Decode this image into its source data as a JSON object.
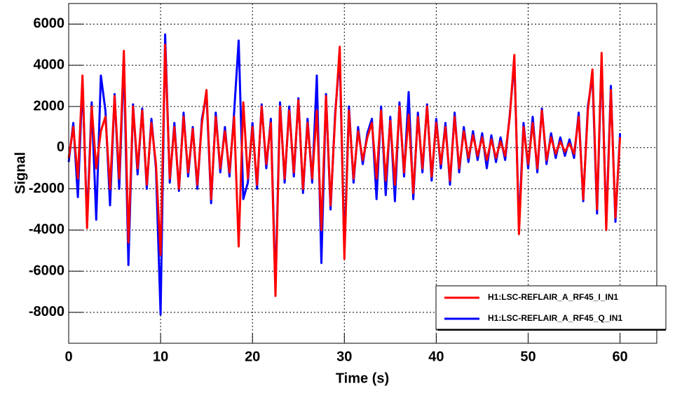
{
  "chart_data": {
    "type": "line",
    "x_label": "Time (s)",
    "y_label": "Signal",
    "x": [
      0,
      0.5,
      1,
      1.5,
      2,
      2.5,
      3,
      3.5,
      4,
      4.5,
      5,
      5.5,
      6,
      6.5,
      7,
      7.5,
      8,
      8.5,
      9,
      9.5,
      10,
      10.5,
      11,
      11.5,
      12,
      12.5,
      13,
      13.5,
      14,
      14.5,
      15,
      15.5,
      16,
      16.5,
      17,
      17.5,
      18,
      18.5,
      19,
      19.5,
      20,
      20.5,
      21,
      21.5,
      22,
      22.5,
      23,
      23.5,
      24,
      24.5,
      25,
      25.5,
      26,
      26.5,
      27,
      27.5,
      28,
      28.5,
      29,
      29.5,
      30,
      30.5,
      31,
      31.5,
      32,
      32.5,
      33,
      33.5,
      34,
      34.5,
      35,
      35.5,
      36,
      36.5,
      37,
      37.5,
      38,
      38.5,
      39,
      39.5,
      40,
      40.5,
      41,
      41.5,
      42,
      42.5,
      43,
      43.5,
      44,
      44.5,
      45,
      45.5,
      46,
      46.5,
      47,
      47.5,
      48,
      48.5,
      49,
      49.5,
      50,
      50.5,
      51,
      51.5,
      52,
      52.5,
      53,
      53.5,
      54,
      54.5,
      55,
      55.5,
      56,
      56.5,
      57,
      57.5,
      58,
      58.5,
      59,
      59.5,
      60
    ],
    "series": [
      {
        "name": "H1:LSC-REFLAIR_A_RF45_I_IN1",
        "color": "#ff0000",
        "values": [
          -500,
          1000,
          -1500,
          3500,
          -3900,
          2000,
          -1000,
          800,
          1500,
          -2000,
          2500,
          -1500,
          4700,
          -4600,
          2000,
          -1000,
          1800,
          -1800,
          1200,
          -800,
          -5200,
          5000,
          -1500,
          1000,
          -2000,
          1500,
          -1200,
          900,
          -1800,
          1200,
          2800,
          -2500,
          1500,
          -1000,
          800,
          -1200,
          1500,
          -4800,
          2200,
          -1500,
          1000,
          -1800,
          2000,
          -800,
          1200,
          -7200,
          2000,
          -1500,
          1800,
          -1200,
          2300,
          -2000,
          1200,
          -1500,
          1800,
          -4000,
          2500,
          -2800,
          1500,
          4900,
          -5400,
          1800,
          -1500,
          800,
          -600,
          500,
          1200,
          -1500,
          1800,
          -1600,
          1300,
          -1800,
          2000,
          -1200,
          1600,
          -2200,
          1500,
          -1000,
          2000,
          -1400,
          1200,
          -800,
          1000,
          -1600,
          1500,
          -1000,
          800,
          -500,
          600,
          -400,
          500,
          -600,
          400,
          -500,
          300,
          -400,
          1500,
          4500,
          -4200,
          1000,
          -800,
          1200,
          -1000,
          1800,
          -600,
          500,
          -300,
          300,
          -200,
          200,
          -300,
          1500,
          -2500,
          1800,
          3800,
          -3000,
          4600,
          -4000,
          2800,
          -3400,
          500
        ]
      },
      {
        "name": "H1:LSC-REFLAIR_A_RF45_Q_IN1",
        "color": "#0000ff",
        "values": [
          -700,
          1200,
          -2400,
          3200,
          -3600,
          2200,
          -3500,
          3500,
          1800,
          -2800,
          2600,
          -2000,
          4300,
          -5700,
          2100,
          -1300,
          1900,
          -2000,
          1400,
          -1000,
          -8100,
          5500,
          -1700,
          1200,
          -2100,
          1700,
          -1400,
          1000,
          -2000,
          1400,
          2600,
          -2700,
          1700,
          -1200,
          1000,
          -1400,
          1700,
          5200,
          -2500,
          -1700,
          1200,
          -2000,
          2100,
          -1000,
          1400,
          -6800,
          2200,
          -1700,
          2000,
          -1400,
          2400,
          -2200,
          1400,
          -1700,
          3500,
          -5600,
          2600,
          -3000,
          1700,
          4400,
          -5000,
          2000,
          -1700,
          1000,
          -800,
          700,
          1400,
          -2500,
          2000,
          -2300,
          1500,
          -2600,
          2200,
          -1400,
          2700,
          -2500,
          1700,
          -1200,
          2100,
          -1600,
          1400,
          -1000,
          1200,
          -1800,
          1700,
          -1200,
          1000,
          -700,
          800,
          -600,
          700,
          -1000,
          600,
          -700,
          500,
          -600,
          1600,
          4200,
          -3800,
          1200,
          -1000,
          1500,
          -1200,
          1900,
          -800,
          700,
          -500,
          500,
          -400,
          400,
          -500,
          1700,
          -2600,
          2000,
          3500,
          -3200,
          4300,
          -3800,
          3000,
          -3600,
          700
        ]
      }
    ],
    "xlim": [
      0,
      64
    ],
    "ylim": [
      -9500,
      7000
    ],
    "xticks": [
      0,
      10,
      20,
      30,
      40,
      50,
      60
    ],
    "yticks": [
      -8000,
      -6000,
      -4000,
      -2000,
      0,
      2000,
      4000,
      6000
    ],
    "grid": true,
    "legend": "bottom right"
  }
}
